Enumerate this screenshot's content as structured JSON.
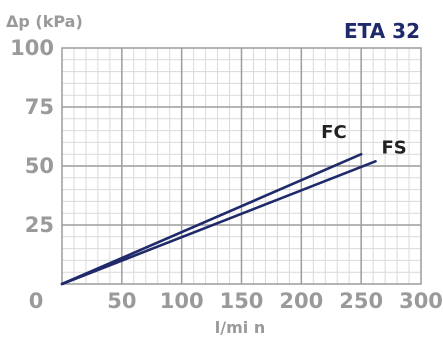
{
  "chart_data": {
    "type": "line",
    "title": "ETA 32",
    "xlabel": "l/mi n",
    "ylabel": "Δp (kPa)",
    "xlim": [
      0,
      300
    ],
    "ylim": [
      0,
      100
    ],
    "x_ticks": [
      "0",
      "50",
      "100",
      "150",
      "200",
      "250",
      "300"
    ],
    "y_ticks": [
      "25",
      "50",
      "75",
      "100"
    ],
    "grid": true,
    "colors": {
      "line": "#1f2a6b",
      "grid_major": "#9c9c9c",
      "grid_minor": "#d9d9d9",
      "title": "#1f2a6b",
      "ticks": "#9a9a9a"
    },
    "series": [
      {
        "name": "FC",
        "x": [
          0,
          250
        ],
        "y": [
          0,
          55
        ]
      },
      {
        "name": "FS",
        "x": [
          0,
          262
        ],
        "y": [
          0,
          52
        ]
      }
    ]
  }
}
